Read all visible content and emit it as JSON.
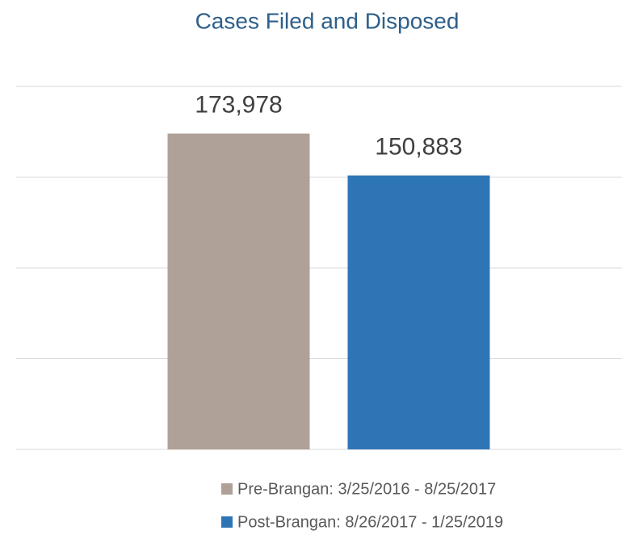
{
  "chart_data": {
    "type": "bar",
    "title": "Cases Filed and Disposed",
    "categories": [
      null
    ],
    "series": [
      {
        "name": "Pre-Brangan: 3/25/2016 - 8/25/2017",
        "color": "#b0a198",
        "values": [
          173978
        ],
        "value_labels": [
          "173,978"
        ]
      },
      {
        "name": "Post-Brangan: 8/26/2017 - 1/25/2019",
        "color": "#2e75b6",
        "values": [
          150883
        ],
        "value_labels": [
          "150,883"
        ]
      }
    ],
    "ylim": [
      0,
      200000
    ],
    "yticks": [
      0,
      50000,
      100000,
      150000,
      200000
    ],
    "grid": true,
    "legend": "bottom"
  }
}
